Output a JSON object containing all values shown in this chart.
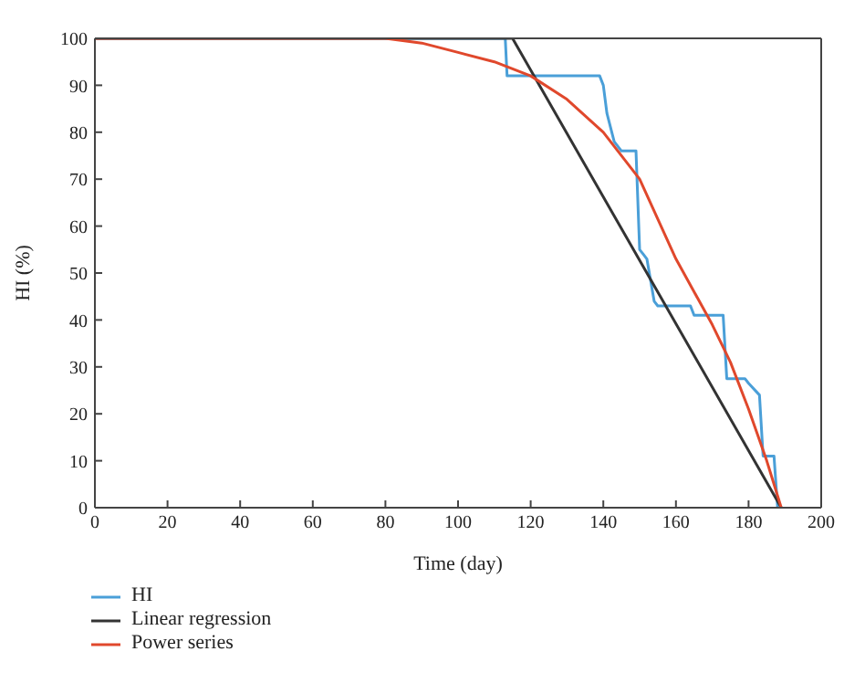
{
  "chart_data": {
    "type": "line",
    "xlabel": "Time (day)",
    "ylabel": "HI (%)",
    "xlim": [
      0,
      200
    ],
    "ylim": [
      0,
      100
    ],
    "xticks": [
      0,
      20,
      40,
      60,
      80,
      100,
      120,
      140,
      160,
      180,
      200
    ],
    "yticks": [
      0,
      10,
      20,
      30,
      40,
      50,
      60,
      70,
      80,
      90,
      100
    ],
    "legend": "bottom left",
    "marker": "none",
    "line_style": "solid",
    "series": [
      {
        "name": "HI",
        "color": "#4a9fd8",
        "x": [
          0,
          113,
          113.5,
          139,
          140,
          141,
          143,
          145,
          149,
          150,
          151,
          152,
          154,
          155,
          164,
          165,
          173,
          174,
          179,
          180,
          183,
          184,
          187,
          188
        ],
        "values": [
          100,
          100,
          92,
          92,
          90,
          84,
          78,
          76,
          76,
          55,
          54,
          53,
          44,
          43,
          43,
          41,
          41,
          27.5,
          27.5,
          26.5,
          24,
          11,
          11,
          0
        ]
      },
      {
        "name": "Linear regression",
        "color": "#333333",
        "x": [
          0,
          115,
          189
        ],
        "values": [
          100,
          100,
          0
        ]
      },
      {
        "name": "Power series",
        "color": "#e0482c",
        "x": [
          0,
          80,
          90,
          100,
          110,
          120,
          130,
          140,
          150,
          160,
          170,
          175,
          180,
          185,
          189
        ],
        "values": [
          100,
          100,
          99,
          97,
          95,
          92,
          87,
          80,
          70,
          53,
          39,
          31,
          21,
          10,
          0
        ]
      }
    ]
  }
}
